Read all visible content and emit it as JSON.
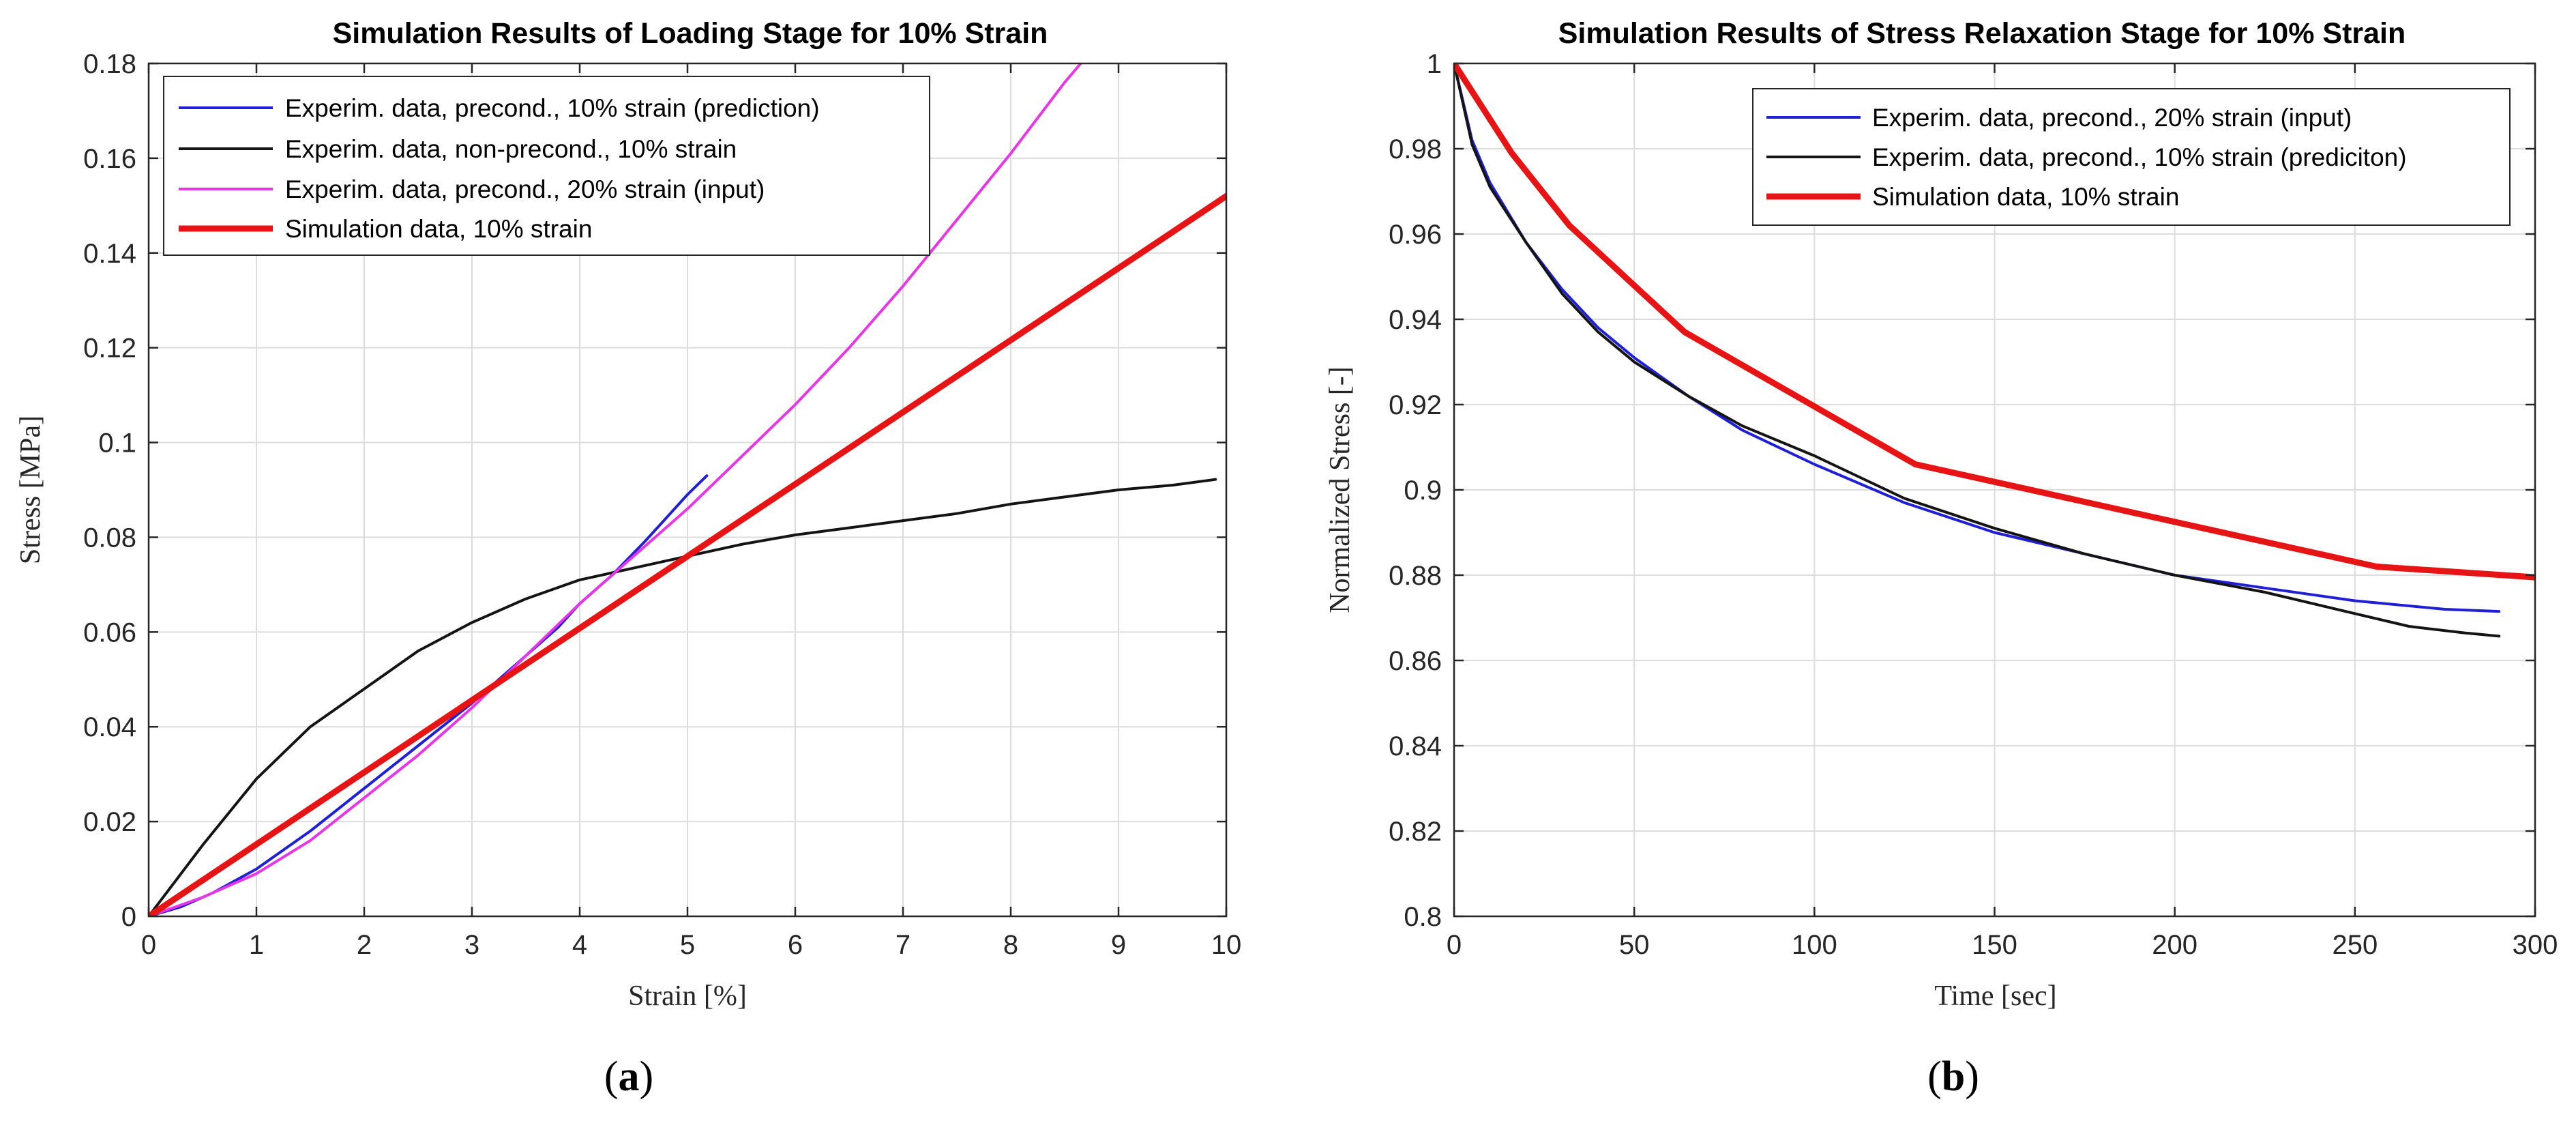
{
  "chart_data": [
    {
      "type": "line",
      "title": "Simulation Results  of Loading Stage for 10% Strain",
      "xlabel": "Strain [%]",
      "ylabel": "Stress [MPa]",
      "xlim": [
        0,
        10
      ],
      "ylim": [
        0,
        0.18
      ],
      "xticks": [
        0,
        1,
        2,
        3,
        4,
        5,
        6,
        7,
        8,
        9,
        10
      ],
      "yticks": [
        0,
        0.02,
        0.04,
        0.06,
        0.08,
        0.1,
        0.12,
        0.14,
        0.16,
        0.18
      ],
      "xtick_labels": [
        "0",
        "1",
        "2",
        "3",
        "4",
        "5",
        "6",
        "7",
        "8",
        "9",
        "10"
      ],
      "ytick_labels": [
        "0",
        "0.02",
        "0.04",
        "0.06",
        "0.08",
        "0.1",
        "0.12",
        "0.14",
        "0.16",
        "0.18"
      ],
      "grid": true,
      "legend_position": "top-left",
      "caption": "a",
      "series": [
        {
          "name": "Experim. data, precond., 10% strain (prediction)",
          "color": "#1f1fd6",
          "x": [
            0,
            0.3,
            0.6,
            1.0,
            1.5,
            2.0,
            2.5,
            3.0,
            3.2,
            3.5,
            3.8,
            4.0,
            4.3,
            4.6,
            4.8,
            5.0,
            5.18
          ],
          "y": [
            0,
            0.002,
            0.005,
            0.01,
            0.018,
            0.027,
            0.036,
            0.045,
            0.049,
            0.055,
            0.061,
            0.066,
            0.072,
            0.079,
            0.084,
            0.089,
            0.093
          ]
        },
        {
          "name": "Experim. data, non-precond., 10% strain",
          "color": "#141414",
          "x": [
            0,
            0.5,
            1.0,
            1.5,
            2.0,
            2.5,
            3.0,
            3.5,
            4.0,
            4.5,
            5.0,
            5.5,
            6.0,
            6.5,
            7.0,
            7.5,
            8.0,
            8.5,
            9.0,
            9.5,
            9.9
          ],
          "y": [
            0,
            0.015,
            0.029,
            0.04,
            0.048,
            0.056,
            0.062,
            0.067,
            0.071,
            0.0735,
            0.076,
            0.0785,
            0.0805,
            0.082,
            0.0835,
            0.085,
            0.087,
            0.0885,
            0.09,
            0.091,
            0.0922
          ]
        },
        {
          "name": "Experim. data, precond., 20% strain (input)",
          "color": "#e636e6",
          "x": [
            0,
            0.5,
            1.0,
            1.5,
            2.0,
            2.5,
            3.0,
            3.5,
            4.0,
            4.5,
            5.0,
            5.5,
            6.0,
            6.5,
            7.0,
            7.5,
            8.0,
            8.5,
            8.65
          ],
          "y": [
            0,
            0.004,
            0.009,
            0.016,
            0.025,
            0.034,
            0.044,
            0.055,
            0.066,
            0.076,
            0.086,
            0.097,
            0.108,
            0.12,
            0.133,
            0.147,
            0.161,
            0.176,
            0.18
          ]
        },
        {
          "name": "Simulation data, 10% strain",
          "color": "#e61414",
          "x": [
            0,
            5,
            10
          ],
          "y": [
            0,
            0.076,
            0.152
          ]
        }
      ]
    },
    {
      "type": "line",
      "title": "Simulation Results  of Stress Relaxation Stage for 10% Strain",
      "xlabel": "Time [sec]",
      "ylabel": "Normalized Stress [-]",
      "xlim": [
        0,
        300
      ],
      "ylim": [
        0.8,
        1
      ],
      "xticks": [
        0,
        50,
        100,
        150,
        200,
        250,
        300
      ],
      "yticks": [
        0.8,
        0.82,
        0.84,
        0.86,
        0.88,
        0.9,
        0.92,
        0.94,
        0.96,
        0.98,
        1
      ],
      "xtick_labels": [
        "0",
        "50",
        "100",
        "150",
        "200",
        "250",
        "300"
      ],
      "ytick_labels": [
        "0.8",
        "0.82",
        "0.84",
        "0.86",
        "0.88",
        "0.9",
        "0.92",
        "0.94",
        "0.96",
        "0.98",
        "1"
      ],
      "grid": true,
      "legend_position": "top-right",
      "caption": "b",
      "series": [
        {
          "name": "Experim. data, precond., 20% strain (input)",
          "color": "#1f1fd6",
          "x": [
            0,
            5,
            10,
            20,
            30,
            40,
            50,
            65,
            80,
            100,
            125,
            150,
            175,
            200,
            225,
            250,
            275,
            290
          ],
          "y": [
            1.0,
            0.982,
            0.972,
            0.958,
            0.947,
            0.938,
            0.931,
            0.922,
            0.914,
            0.906,
            0.897,
            0.89,
            0.885,
            0.88,
            0.877,
            0.874,
            0.872,
            0.8715
          ]
        },
        {
          "name": "Experim. data, precond., 10% strain (prediciton)",
          "color": "#141414",
          "x": [
            0,
            5,
            10,
            20,
            30,
            40,
            50,
            65,
            80,
            100,
            125,
            150,
            175,
            200,
            225,
            250,
            265,
            280,
            290
          ],
          "y": [
            1.0,
            0.981,
            0.971,
            0.958,
            0.946,
            0.937,
            0.93,
            0.922,
            0.915,
            0.908,
            0.898,
            0.891,
            0.885,
            0.88,
            0.876,
            0.871,
            0.868,
            0.8665,
            0.8657
          ]
        },
        {
          "name": "Simulation data, 10% strain",
          "color": "#e61414",
          "x": [
            0,
            16,
            32,
            64,
            128,
            256,
            300
          ],
          "y": [
            1.0,
            0.979,
            0.962,
            0.937,
            0.906,
            0.882,
            0.8795
          ]
        }
      ]
    }
  ]
}
